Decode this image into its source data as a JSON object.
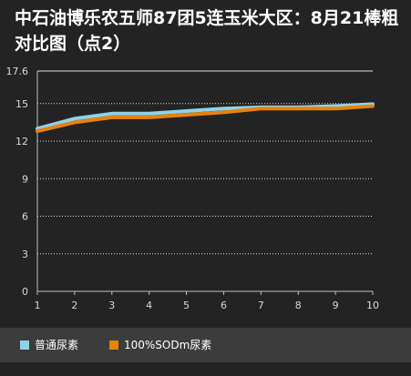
{
  "chart_data": {
    "type": "line",
    "title": "中石油博乐农五师87团5连玉米大区：8月21棒粗对比图（点2）",
    "categories": [
      "1",
      "2",
      "3",
      "4",
      "5",
      "6",
      "7",
      "8",
      "9",
      "10"
    ],
    "yticks": [
      "0",
      "3",
      "6",
      "9",
      "12",
      "15",
      "17.6"
    ],
    "ylim": [
      0,
      17.6
    ],
    "grid": true,
    "legend_position": "bottom",
    "series": [
      {
        "name": "普通尿素",
        "color": "#8fd3e8",
        "values": [
          13.0,
          13.8,
          14.2,
          14.2,
          14.4,
          14.6,
          14.7,
          14.7,
          14.8,
          14.95
        ]
      },
      {
        "name": "100%SODm尿素",
        "color": "#e8820c",
        "values": [
          12.8,
          13.5,
          13.9,
          13.9,
          14.1,
          14.3,
          14.6,
          14.6,
          14.6,
          14.8
        ]
      }
    ]
  }
}
